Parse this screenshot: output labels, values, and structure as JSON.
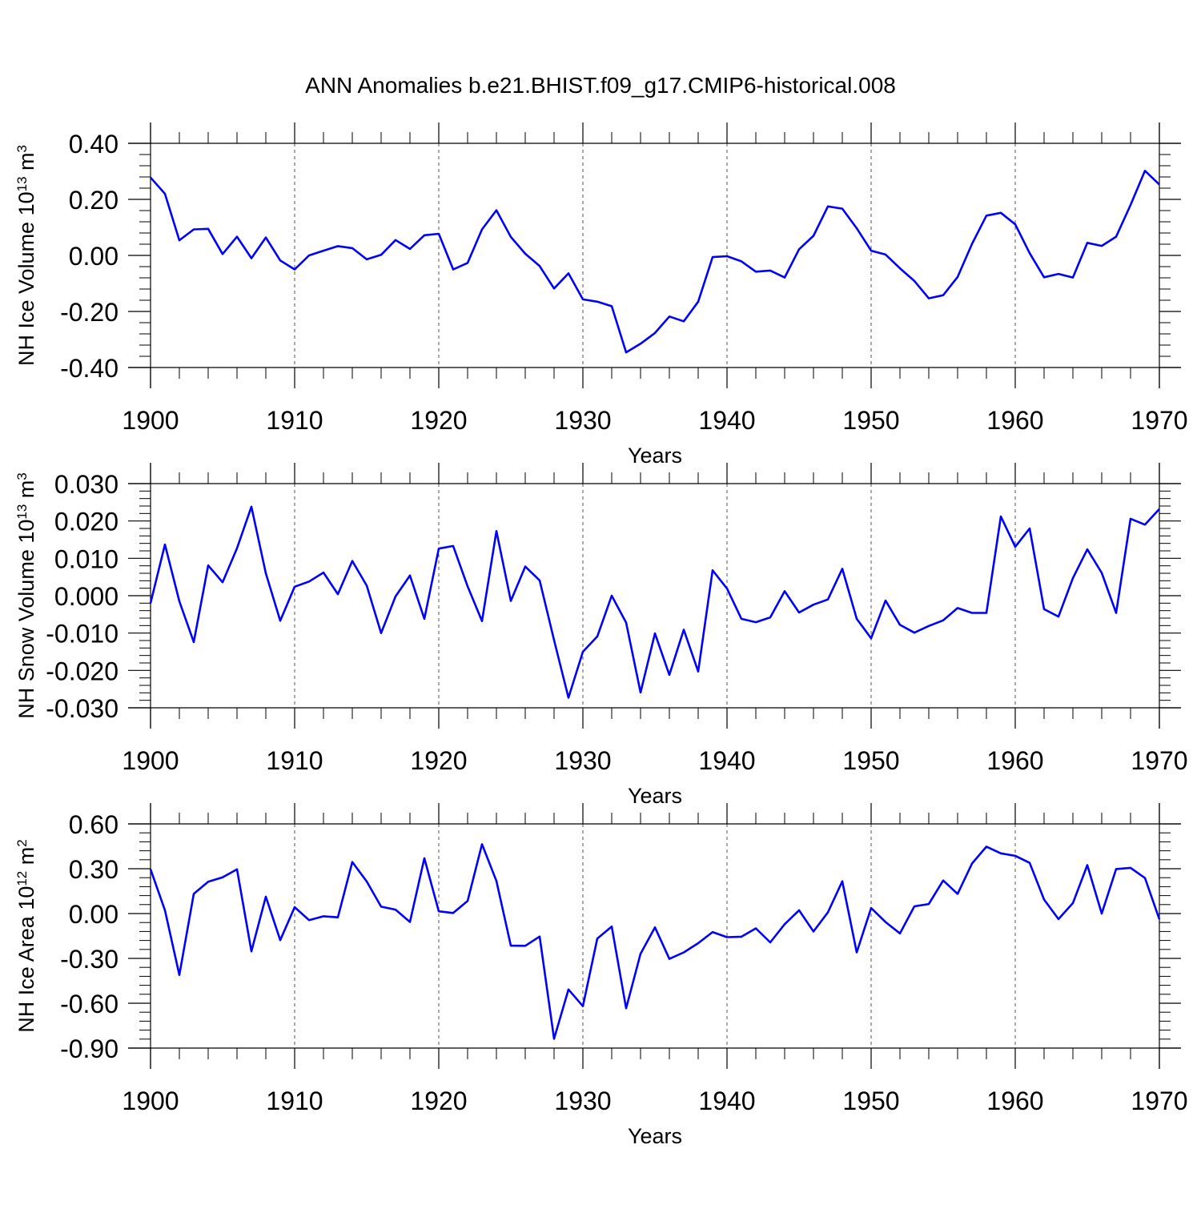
{
  "figure": {
    "title": "ANN Anomalies b.e21.BHIST.f09_g17.CMIP6-historical.008",
    "line_color": "#0000ff",
    "axis_color": "#000000",
    "grid_color": "#555555"
  },
  "chart_data": [
    {
      "type": "line",
      "name": "ice-volume",
      "ylabel": "NH Ice Volume 10",
      "ylabel_sup": "13",
      "ylabel_unit": "m",
      "ylabel_unit_sup": "3",
      "xlabel": "Years",
      "xlim": [
        1900,
        1970
      ],
      "ylim": [
        -0.4,
        0.4
      ],
      "x_ticks": [
        "1900",
        "1910",
        "1920",
        "1930",
        "1940",
        "1950",
        "1960",
        "1970"
      ],
      "y_ticks": [
        "-0.40",
        "-0.20",
        "0.00",
        "0.20",
        "0.40"
      ],
      "y_tick_values": [
        -0.4,
        -0.2,
        0.0,
        0.2,
        0.4
      ],
      "grid": "vertical-dashed-decades",
      "series": [
        {
          "name": "NH Ice Volume",
          "x_start": 1900,
          "values": [
            0.278,
            0.22,
            0.054,
            0.093,
            0.095,
            0.005,
            0.067,
            -0.01,
            0.064,
            -0.018,
            -0.05,
            0.0,
            0.017,
            0.033,
            0.026,
            -0.014,
            0.002,
            0.055,
            0.023,
            0.072,
            0.077,
            -0.05,
            -0.027,
            0.093,
            0.161,
            0.066,
            0.006,
            -0.038,
            -0.118,
            -0.064,
            -0.157,
            -0.165,
            -0.181,
            -0.346,
            -0.315,
            -0.277,
            -0.218,
            -0.235,
            -0.165,
            -0.006,
            -0.003,
            -0.021,
            -0.058,
            -0.054,
            -0.079,
            0.022,
            0.07,
            0.175,
            0.167,
            0.097,
            0.017,
            0.003,
            -0.046,
            -0.091,
            -0.153,
            -0.142,
            -0.077,
            0.041,
            0.142,
            0.152,
            0.111,
            0.008,
            -0.078,
            -0.066,
            -0.079,
            0.045,
            0.034,
            0.067,
            0.18,
            0.302,
            0.253
          ]
        }
      ]
    },
    {
      "type": "line",
      "name": "snow-volume",
      "ylabel": "NH Snow Volume 10",
      "ylabel_sup": "13",
      "ylabel_unit": "m",
      "ylabel_unit_sup": "3",
      "xlabel": "Years",
      "xlim": [
        1900,
        1970
      ],
      "ylim": [
        -0.03,
        0.03
      ],
      "x_ticks": [
        "1900",
        "1910",
        "1920",
        "1930",
        "1940",
        "1950",
        "1960",
        "1970"
      ],
      "y_ticks": [
        "-0.030",
        "-0.020",
        "-0.010",
        "0.000",
        "0.010",
        "0.020",
        "0.030"
      ],
      "y_tick_values": [
        -0.03,
        -0.02,
        -0.01,
        0.0,
        0.01,
        0.02,
        0.03
      ],
      "grid": "vertical-dashed-decades",
      "series": [
        {
          "name": "NH Snow Volume",
          "x_start": 1900,
          "values": [
            -0.002,
            0.0137,
            -0.0015,
            -0.0124,
            0.0081,
            0.0036,
            0.0127,
            0.0238,
            0.006,
            -0.0067,
            0.0024,
            0.0038,
            0.0062,
            0.0004,
            0.0093,
            0.0027,
            -0.01,
            -0.0002,
            0.0054,
            -0.0062,
            0.0126,
            0.0133,
            0.0025,
            -0.0068,
            0.0173,
            -0.0014,
            0.0078,
            0.0041,
            -0.0119,
            -0.0273,
            -0.015,
            -0.0109,
            0.0,
            -0.0072,
            -0.0259,
            -0.0101,
            -0.0212,
            -0.0091,
            -0.0203,
            0.0068,
            0.0019,
            -0.0062,
            -0.0071,
            -0.0058,
            0.0012,
            -0.0045,
            -0.0024,
            -0.001,
            0.0072,
            -0.0062,
            -0.0114,
            -0.0013,
            -0.0078,
            -0.0099,
            -0.0081,
            -0.0066,
            -0.0033,
            -0.0046,
            -0.0046,
            0.0212,
            0.0131,
            0.018,
            -0.0036,
            -0.0056,
            0.0047,
            0.0124,
            0.0061,
            -0.0046,
            0.0206,
            0.019,
            0.0232
          ]
        }
      ]
    },
    {
      "type": "line",
      "name": "ice-area",
      "ylabel": "NH Ice Area 10",
      "ylabel_sup": "12",
      "ylabel_unit": "m",
      "ylabel_unit_sup": "2",
      "xlabel": "Years",
      "xlim": [
        1900,
        1970
      ],
      "ylim": [
        -0.9,
        0.6
      ],
      "x_ticks": [
        "1900",
        "1910",
        "1920",
        "1930",
        "1940",
        "1950",
        "1960",
        "1970"
      ],
      "y_ticks": [
        "-0.90",
        "-0.60",
        "-0.30",
        "0.00",
        "0.30",
        "0.60"
      ],
      "y_tick_values": [
        -0.9,
        -0.6,
        -0.3,
        0.0,
        0.3,
        0.6
      ],
      "grid": "vertical-dashed-decades",
      "series": [
        {
          "name": "NH Ice Area",
          "x_start": 1900,
          "values": [
            0.297,
            0.022,
            -0.411,
            0.132,
            0.213,
            0.242,
            0.296,
            -0.253,
            0.113,
            -0.178,
            0.043,
            -0.044,
            -0.018,
            -0.025,
            0.345,
            0.215,
            0.046,
            0.026,
            -0.056,
            0.37,
            0.015,
            0.004,
            0.084,
            0.464,
            0.218,
            -0.215,
            -0.216,
            -0.154,
            -0.838,
            -0.508,
            -0.62,
            -0.167,
            -0.087,
            -0.634,
            -0.269,
            -0.092,
            -0.303,
            -0.26,
            -0.198,
            -0.124,
            -0.158,
            -0.155,
            -0.099,
            -0.193,
            -0.071,
            0.022,
            -0.12,
            0.008,
            0.216,
            -0.26,
            0.037,
            -0.057,
            -0.133,
            0.048,
            0.064,
            0.221,
            0.132,
            0.335,
            0.448,
            0.403,
            0.386,
            0.339,
            0.094,
            -0.037,
            0.07,
            0.324,
            0.0,
            0.298,
            0.306,
            0.238,
            -0.038
          ]
        }
      ]
    }
  ]
}
